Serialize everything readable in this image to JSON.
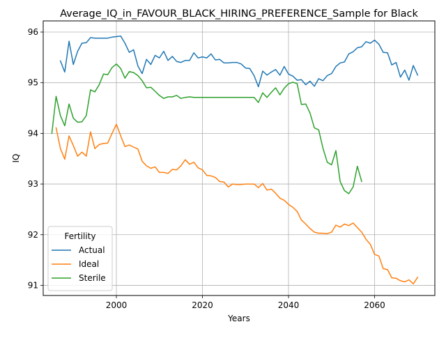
{
  "chart_data": {
    "type": "line",
    "title": "Average_IQ_in_FAVOUR_BLACK_HIRING_PREFERENCE_Sample for Black",
    "xlabel": "Years",
    "ylabel": "IQ",
    "xlim": [
      1983,
      2074
    ],
    "ylim": [
      90.8,
      96.22
    ],
    "xticks": [
      2000,
      2020,
      2040,
      2060
    ],
    "yticks": [
      91,
      92,
      93,
      94,
      95,
      96
    ],
    "grid": true,
    "legend": {
      "title": "Fertility",
      "position": "lower-left"
    },
    "colors": {
      "Actual": "#1f77b4",
      "Ideal": "#ff7f0e",
      "Sterile": "#2ca02c"
    },
    "series": [
      {
        "name": "Actual",
        "x": [
          1987,
          1988,
          1989,
          1990,
          1991,
          1992,
          1993,
          1994,
          1995,
          1996,
          1997,
          1998,
          1999,
          2000,
          2001,
          2002,
          2003,
          2004,
          2005,
          2006,
          2007,
          2008,
          2009,
          2010,
          2011,
          2012,
          2013,
          2014,
          2015,
          2016,
          2017,
          2018,
          2019,
          2020,
          2021,
          2022,
          2023,
          2024,
          2025,
          2026,
          2027,
          2028,
          2029,
          2030,
          2031,
          2032,
          2033,
          2034,
          2035,
          2036,
          2037,
          2038,
          2039,
          2040,
          2041,
          2042,
          2043,
          2044,
          2045,
          2046,
          2047,
          2048,
          2049,
          2050,
          2051,
          2052,
          2053,
          2054,
          2055,
          2056,
          2057,
          2058,
          2059,
          2060,
          2061,
          2062,
          2063,
          2064,
          2065,
          2066,
          2067,
          2068,
          2069,
          2070
        ],
        "y": [
          95.43,
          95.21,
          95.82,
          95.36,
          95.62,
          95.78,
          95.79,
          95.89,
          95.88,
          95.88,
          95.88,
          95.88,
          95.9,
          95.91,
          95.92,
          95.78,
          95.6,
          95.65,
          95.33,
          95.18,
          95.46,
          95.36,
          95.54,
          95.49,
          95.62,
          95.44,
          95.52,
          95.42,
          95.4,
          95.44,
          95.44,
          95.59,
          95.49,
          95.51,
          95.49,
          95.57,
          95.45,
          95.46,
          95.39,
          95.39,
          95.4,
          95.4,
          95.37,
          95.29,
          95.28,
          95.14,
          94.92,
          95.23,
          95.15,
          95.21,
          95.26,
          95.15,
          95.32,
          95.17,
          95.13,
          95.05,
          95.06,
          94.96,
          95.03,
          94.93,
          95.08,
          95.04,
          95.14,
          95.18,
          95.32,
          95.39,
          95.41,
          95.57,
          95.61,
          95.69,
          95.71,
          95.81,
          95.78,
          95.84,
          95.76,
          95.6,
          95.59,
          95.35,
          95.4,
          95.11,
          95.25,
          95.05,
          95.34,
          95.15
        ]
      },
      {
        "name": "Ideal",
        "x": [
          1986,
          1987,
          1988,
          1989,
          1990,
          1991,
          1992,
          1993,
          1994,
          1995,
          1996,
          1997,
          1998,
          1999,
          2000,
          2001,
          2002,
          2003,
          2004,
          2005,
          2006,
          2007,
          2008,
          2009,
          2010,
          2011,
          2012,
          2013,
          2014,
          2015,
          2016,
          2017,
          2018,
          2019,
          2020,
          2021,
          2022,
          2023,
          2024,
          2025,
          2026,
          2027,
          2028,
          2029,
          2030,
          2031,
          2032,
          2033,
          2034,
          2035,
          2036,
          2037,
          2038,
          2039,
          2040,
          2041,
          2042,
          2043,
          2044,
          2045,
          2046,
          2047,
          2048,
          2049,
          2050,
          2051,
          2052,
          2053,
          2054,
          2055,
          2056,
          2057,
          2058,
          2059,
          2060,
          2061,
          2062,
          2063,
          2064,
          2065,
          2066,
          2067,
          2068,
          2069,
          2070
        ],
        "y": [
          94.11,
          93.7,
          93.49,
          93.95,
          93.76,
          93.55,
          93.63,
          93.55,
          94.03,
          93.7,
          93.78,
          93.8,
          93.81,
          94.0,
          94.18,
          93.95,
          93.74,
          93.77,
          93.73,
          93.69,
          93.45,
          93.36,
          93.31,
          93.34,
          93.23,
          93.23,
          93.21,
          93.29,
          93.28,
          93.36,
          93.48,
          93.39,
          93.43,
          93.32,
          93.28,
          93.17,
          93.16,
          93.13,
          93.05,
          93.04,
          92.94,
          93.0,
          92.99,
          92.99,
          93.0,
          93.0,
          93.0,
          92.93,
          93.01,
          92.88,
          92.9,
          92.82,
          92.72,
          92.68,
          92.6,
          92.54,
          92.46,
          92.29,
          92.21,
          92.12,
          92.05,
          92.03,
          92.03,
          92.02,
          92.05,
          92.19,
          92.15,
          92.21,
          92.18,
          92.23,
          92.14,
          92.05,
          91.91,
          91.81,
          91.61,
          91.58,
          91.33,
          91.31,
          91.15,
          91.14,
          91.09,
          91.07,
          91.11,
          91.03,
          91.16
        ]
      },
      {
        "name": "Sterile",
        "x": [
          1985,
          1986,
          1987,
          1988,
          1989,
          1990,
          1991,
          1992,
          1993,
          1994,
          1995,
          1996,
          1997,
          1998,
          1999,
          2000,
          2001,
          2002,
          2003,
          2004,
          2005,
          2006,
          2007,
          2008,
          2009,
          2010,
          2011,
          2012,
          2013,
          2014,
          2015,
          2016,
          2017,
          2018,
          2019,
          2020,
          2021,
          2022,
          2023,
          2024,
          2025,
          2026,
          2027,
          2028,
          2029,
          2030,
          2031,
          2032,
          2033,
          2034,
          2035,
          2036,
          2037,
          2038,
          2039,
          2040,
          2041,
          2042,
          2043,
          2044,
          2045,
          2046,
          2047,
          2048,
          2049,
          2050,
          2051,
          2052,
          2053,
          2054,
          2055,
          2056,
          2057
        ],
        "y": [
          94.0,
          94.73,
          94.35,
          94.15,
          94.58,
          94.3,
          94.22,
          94.23,
          94.35,
          94.86,
          94.82,
          94.96,
          95.17,
          95.16,
          95.3,
          95.37,
          95.28,
          95.09,
          95.22,
          95.2,
          95.14,
          95.04,
          94.9,
          94.91,
          94.83,
          94.75,
          94.69,
          94.72,
          94.72,
          94.75,
          94.69,
          94.71,
          94.72,
          94.71,
          94.71,
          94.71,
          94.71,
          94.71,
          94.71,
          94.71,
          94.71,
          94.71,
          94.71,
          94.71,
          94.71,
          94.71,
          94.71,
          94.71,
          94.61,
          94.8,
          94.71,
          94.81,
          94.9,
          94.76,
          94.89,
          94.98,
          95.01,
          94.98,
          94.57,
          94.58,
          94.4,
          94.11,
          94.07,
          93.71,
          93.43,
          93.38,
          93.66,
          93.05,
          92.87,
          92.81,
          92.94,
          93.35,
          93.05
        ]
      }
    ]
  }
}
